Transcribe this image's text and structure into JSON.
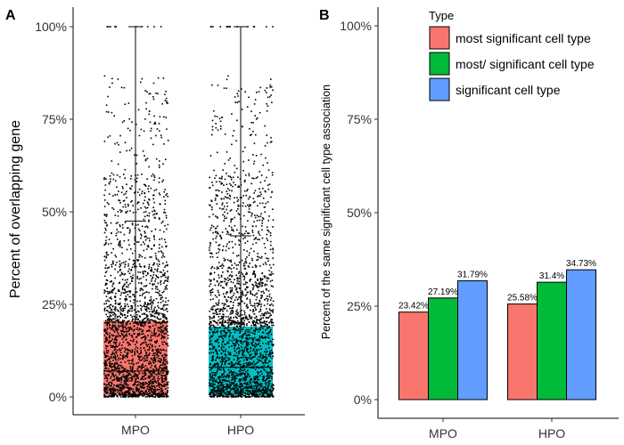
{
  "chart_data": [
    {
      "panel": "A",
      "type": "boxplot",
      "ylabel": "Percent of overlapping gene",
      "ylim": [
        0,
        100
      ],
      "yticks": [
        "0%",
        "25%",
        "50%",
        "75%",
        "100%"
      ],
      "categories": [
        "MPO",
        "HPO"
      ],
      "boxes": [
        {
          "category": "MPO",
          "color": "#F8766D",
          "q1": 0.5,
          "median": 7,
          "q3": 20.5,
          "mean": 47.5,
          "whisker_low": 0,
          "whisker_high": 100
        },
        {
          "category": "HPO",
          "color": "#00BFC4",
          "q1": 0.5,
          "median": 8,
          "q3": 19,
          "mean": 43.5,
          "whisker_low": 0,
          "whisker_high": 100
        }
      ],
      "grid": false
    },
    {
      "panel": "B",
      "type": "bar",
      "ylabel": "Percent of the same significant cell type association",
      "ylim": [
        0,
        100
      ],
      "yticks": [
        "0%",
        "25%",
        "50%",
        "75%",
        "100%"
      ],
      "categories": [
        "MPO",
        "HPO"
      ],
      "series": [
        {
          "name": "most significant cell type",
          "color": "#F8766D",
          "values": [
            23.42,
            25.58
          ],
          "labels": [
            "23.42%",
            "25.58%"
          ]
        },
        {
          "name": "most/ significant cell type",
          "color": "#00BA38",
          "values": [
            27.19,
            31.4
          ],
          "labels": [
            "27.19%",
            "31.4%"
          ]
        },
        {
          "name": "significant cell type",
          "color": "#619CFF",
          "values": [
            31.79,
            34.73
          ],
          "labels": [
            "31.79%",
            "34.73%"
          ]
        }
      ],
      "legend_title": "Type",
      "legend_position": "top-right",
      "grid": false
    }
  ]
}
